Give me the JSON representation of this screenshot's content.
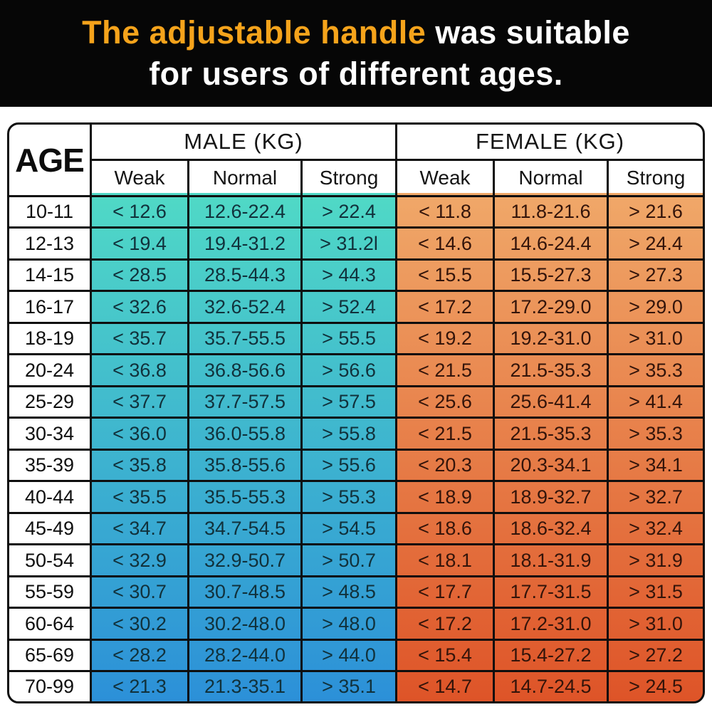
{
  "banner": {
    "title_highlight": "The adjustable handle",
    "title_rest": " was suitable",
    "title_line2": "for users of different ages.",
    "highlight_color": "#F5A31B",
    "text_color": "#FFFFFF",
    "background": "#060606"
  },
  "table": {
    "age_header": "AGE",
    "groups": [
      {
        "label": "MALE (KG)",
        "sub": [
          "Weak",
          "Normal",
          "Strong"
        ]
      },
      {
        "label": "FEMALE (KG)",
        "sub": [
          "Weak",
          "Normal",
          "Strong"
        ]
      }
    ],
    "colors": {
      "male_gradient_top": "#50D9C6",
      "male_gradient_bottom": "#2C90D8",
      "female_gradient_top": "#F0A869",
      "female_gradient_bottom": "#DE5428",
      "border": "#0E0E0E",
      "header_bg": "#FFFFFF"
    },
    "rows": [
      {
        "age": "10-11",
        "male": [
          "< 12.6",
          "12.6-22.4",
          "> 22.4"
        ],
        "female": [
          "< 11.8",
          "11.8-21.6",
          "> 21.6"
        ]
      },
      {
        "age": "12-13",
        "male": [
          "< 19.4",
          "19.4-31.2",
          "> 31.2l"
        ],
        "female": [
          "< 14.6",
          "14.6-24.4",
          "> 24.4"
        ]
      },
      {
        "age": "14-15",
        "male": [
          "< 28.5",
          "28.5-44.3",
          "> 44.3"
        ],
        "female": [
          "< 15.5",
          "15.5-27.3",
          "> 27.3"
        ]
      },
      {
        "age": "16-17",
        "male": [
          "< 32.6",
          "32.6-52.4",
          "> 52.4"
        ],
        "female": [
          "< 17.2",
          "17.2-29.0",
          "> 29.0"
        ]
      },
      {
        "age": "18-19",
        "male": [
          "< 35.7",
          "35.7-55.5",
          "> 55.5"
        ],
        "female": [
          "< 19.2",
          "19.2-31.0",
          "> 31.0"
        ]
      },
      {
        "age": "20-24",
        "male": [
          "< 36.8",
          "36.8-56.6",
          "> 56.6"
        ],
        "female": [
          "< 21.5",
          "21.5-35.3",
          "> 35.3"
        ]
      },
      {
        "age": "25-29",
        "male": [
          "< 37.7",
          "37.7-57.5",
          "> 57.5"
        ],
        "female": [
          "< 25.6",
          "25.6-41.4",
          "> 41.4"
        ]
      },
      {
        "age": "30-34",
        "male": [
          "< 36.0",
          "36.0-55.8",
          "> 55.8"
        ],
        "female": [
          "< 21.5",
          "21.5-35.3",
          "> 35.3"
        ]
      },
      {
        "age": "35-39",
        "male": [
          "< 35.8",
          "35.8-55.6",
          "> 55.6"
        ],
        "female": [
          "< 20.3",
          "20.3-34.1",
          "> 34.1"
        ]
      },
      {
        "age": "40-44",
        "male": [
          "< 35.5",
          "35.5-55.3",
          "> 55.3"
        ],
        "female": [
          "< 18.9",
          "18.9-32.7",
          "> 32.7"
        ]
      },
      {
        "age": "45-49",
        "male": [
          "< 34.7",
          "34.7-54.5",
          "> 54.5"
        ],
        "female": [
          "< 18.6",
          "18.6-32.4",
          "> 32.4"
        ]
      },
      {
        "age": "50-54",
        "male": [
          "< 32.9",
          "32.9-50.7",
          "> 50.7"
        ],
        "female": [
          "< 18.1",
          "18.1-31.9",
          "> 31.9"
        ]
      },
      {
        "age": "55-59",
        "male": [
          "< 30.7",
          "30.7-48.5",
          "> 48.5"
        ],
        "female": [
          "< 17.7",
          "17.7-31.5",
          "> 31.5"
        ]
      },
      {
        "age": "60-64",
        "male": [
          "< 30.2",
          "30.2-48.0",
          "> 48.0"
        ],
        "female": [
          "< 17.2",
          "17.2-31.0",
          "> 31.0"
        ]
      },
      {
        "age": "65-69",
        "male": [
          "< 28.2",
          "28.2-44.0",
          "> 44.0"
        ],
        "female": [
          "< 15.4",
          "15.4-27.2",
          "> 27.2"
        ]
      },
      {
        "age": "70-99",
        "male": [
          "< 21.3",
          "21.3-35.1",
          "> 35.1"
        ],
        "female": [
          "< 14.7",
          "14.7-24.5",
          "> 24.5"
        ]
      }
    ]
  },
  "chart_data": {
    "type": "table",
    "title": "The adjustable handle was suitable for users of different ages.",
    "units": "KG",
    "columns": [
      "AGE",
      "Male Weak",
      "Male Normal",
      "Male Strong",
      "Female Weak",
      "Female Normal",
      "Female Strong"
    ],
    "rows": [
      [
        "10-11",
        "<12.6",
        "12.6-22.4",
        ">22.4",
        "<11.8",
        "11.8-21.6",
        ">21.6"
      ],
      [
        "12-13",
        "<19.4",
        "19.4-31.2",
        ">31.2l",
        "<14.6",
        "14.6-24.4",
        ">24.4"
      ],
      [
        "14-15",
        "<28.5",
        "28.5-44.3",
        ">44.3",
        "<15.5",
        "15.5-27.3",
        ">27.3"
      ],
      [
        "16-17",
        "<32.6",
        "32.6-52.4",
        ">52.4",
        "<17.2",
        "17.2-29.0",
        ">29.0"
      ],
      [
        "18-19",
        "<35.7",
        "35.7-55.5",
        ">55.5",
        "<19.2",
        "19.2-31.0",
        ">31.0"
      ],
      [
        "20-24",
        "<36.8",
        "36.8-56.6",
        ">56.6",
        "<21.5",
        "21.5-35.3",
        ">35.3"
      ],
      [
        "25-29",
        "<37.7",
        "37.7-57.5",
        ">57.5",
        "<25.6",
        "25.6-41.4",
        ">41.4"
      ],
      [
        "30-34",
        "<36.0",
        "36.0-55.8",
        ">55.8",
        "<21.5",
        "21.5-35.3",
        ">35.3"
      ],
      [
        "35-39",
        "<35.8",
        "35.8-55.6",
        ">55.6",
        "<20.3",
        "20.3-34.1",
        ">34.1"
      ],
      [
        "40-44",
        "<35.5",
        "35.5-55.3",
        ">55.3",
        "<18.9",
        "18.9-32.7",
        ">32.7"
      ],
      [
        "45-49",
        "<34.7",
        "34.7-54.5",
        ">54.5",
        "<18.6",
        "18.6-32.4",
        ">32.4"
      ],
      [
        "50-54",
        "<32.9",
        "32.9-50.7",
        ">50.7",
        "<18.1",
        "18.1-31.9",
        ">31.9"
      ],
      [
        "55-59",
        "<30.7",
        "30.7-48.5",
        ">48.5",
        "<17.7",
        "17.7-31.5",
        ">31.5"
      ],
      [
        "60-64",
        "<30.2",
        "30.2-48.0",
        ">48.0",
        "<17.2",
        "17.2-31.0",
        ">31.0"
      ],
      [
        "65-69",
        "<28.2",
        "28.2-44.0",
        ">44.0",
        "<15.4",
        "15.4-27.2",
        ">27.2"
      ],
      [
        "70-99",
        "<21.3",
        "21.3-35.1",
        ">35.1",
        "<14.7",
        "14.7-24.5",
        ">24.5"
      ]
    ]
  }
}
